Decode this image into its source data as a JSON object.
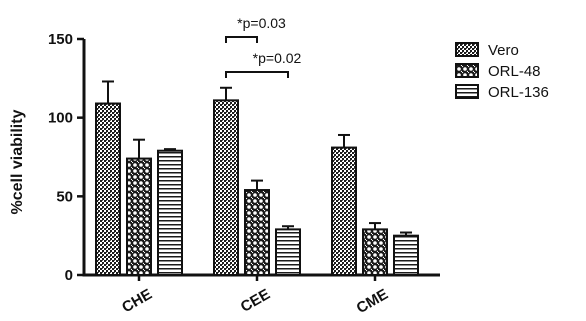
{
  "chart_data": {
    "type": "bar",
    "ylabel": "%cell viability",
    "xlabel": "",
    "ylim": [
      0,
      150
    ],
    "yticks": [
      0,
      50,
      100,
      150
    ],
    "categories": [
      "CHE",
      "CEE",
      "CME"
    ],
    "series": [
      {
        "name": "Vero",
        "values": [
          109,
          111,
          81
        ],
        "errors": [
          14,
          8,
          8
        ],
        "pattern": "dense-dots"
      },
      {
        "name": "ORL-48",
        "values": [
          74,
          54,
          29
        ],
        "errors": [
          12,
          6,
          4
        ],
        "pattern": "circles"
      },
      {
        "name": "ORL-136",
        "values": [
          79,
          29,
          25
        ],
        "errors": [
          1,
          2,
          2
        ],
        "pattern": "horizontal-lines"
      }
    ],
    "annotations": [
      {
        "text": "*p=0.03",
        "category": "CEE",
        "from_series": 0,
        "to_series": 1
      },
      {
        "text": "*p=0.02",
        "category": "CEE",
        "from_series": 0,
        "to_series": 2
      }
    ],
    "legend_position": "right",
    "grid": false
  }
}
